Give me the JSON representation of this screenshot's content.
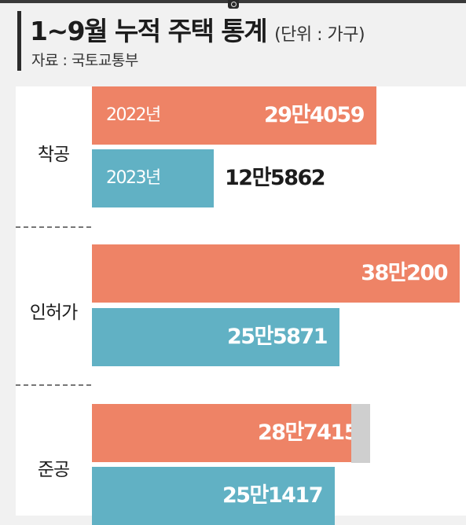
{
  "header": {
    "title": "1~9월 누적 주택 통계",
    "unit": "(단위 : 가구)",
    "source": "자료 : 국토교통부"
  },
  "chart_data": {
    "type": "bar",
    "orientation": "horizontal",
    "title": "1~9월 누적 주택 통계",
    "unit": "가구",
    "categories": [
      "착공",
      "인허가",
      "준공"
    ],
    "series": [
      {
        "name": "2022년",
        "color": "#ee8366",
        "values": [
          294059,
          380200,
          287415
        ],
        "labels": [
          "29만4059",
          "38만200",
          "28만7415"
        ]
      },
      {
        "name": "2023년",
        "color": "#61b1c4",
        "values": [
          125862,
          255871,
          251417
        ],
        "labels": [
          "12만5862",
          "25만5871",
          "25만1417"
        ]
      }
    ],
    "legend": "inline-on-bars",
    "grid": false
  }
}
